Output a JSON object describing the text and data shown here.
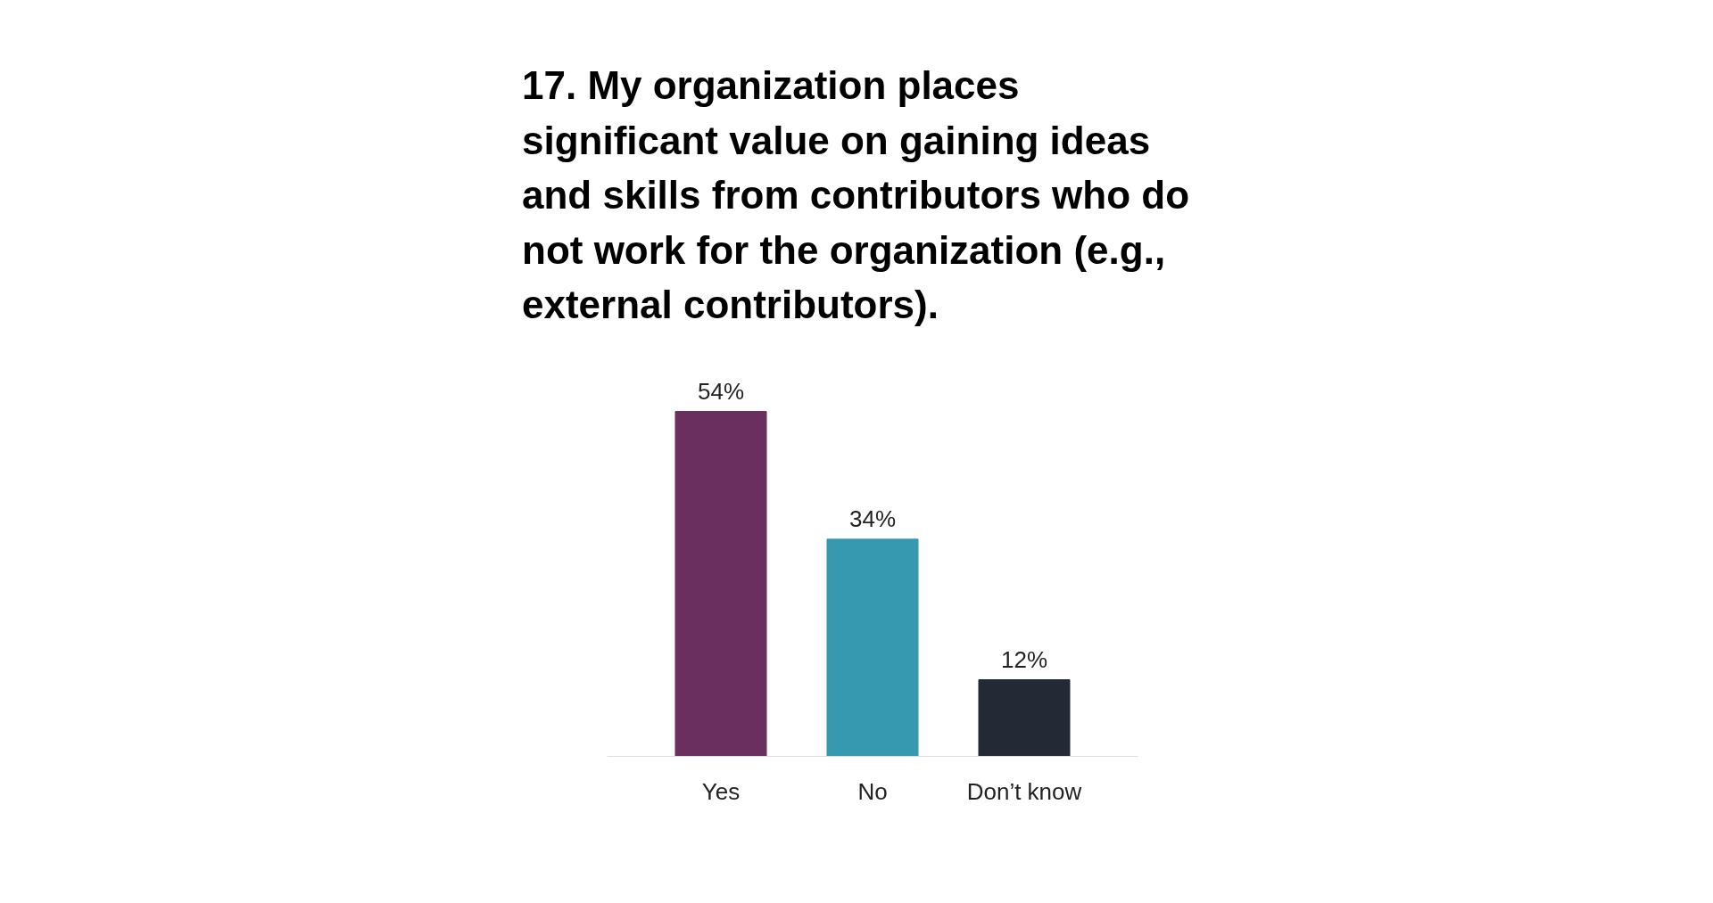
{
  "chart_data": {
    "type": "bar",
    "title": "17. My organization places significant value on gaining ideas and skills from contributors who do not work for the organization (e.g., external contributors).",
    "categories": [
      "Yes",
      "No",
      "Don’t know"
    ],
    "values": [
      54,
      34,
      12
    ],
    "value_labels": [
      "54%",
      "34%",
      "12%"
    ],
    "colors": [
      "#6b2f5f",
      "#3799b0",
      "#232a35"
    ]
  }
}
